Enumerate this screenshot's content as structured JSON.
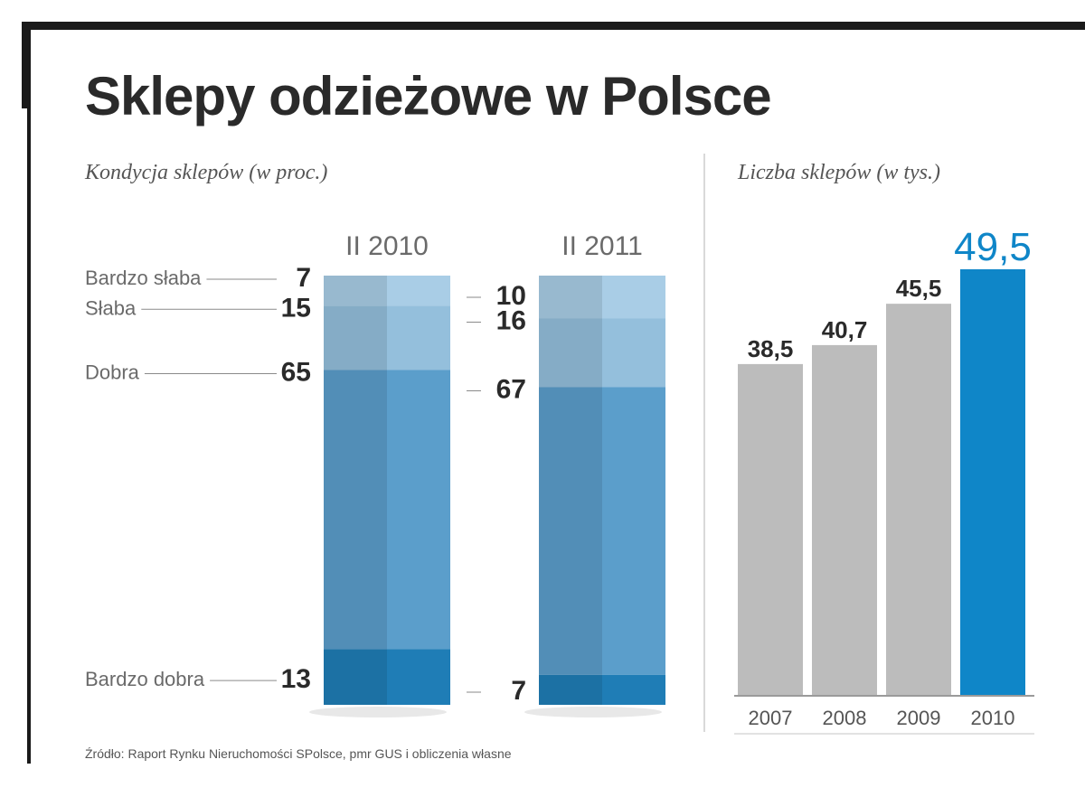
{
  "title": "Sklepy odzieżowe w Polsce",
  "source": "Źródło: Raport Rynku Nieruchomości SPolsce, pmr GUS i obliczenia własne",
  "chart_data": [
    {
      "type": "bar",
      "stacked": true,
      "subtitle": "Kondycja sklepów (w proc.)",
      "categories": [
        "II 2010",
        "II 2011"
      ],
      "series": [
        {
          "name": "Bardzo słaba",
          "values": [
            7,
            10
          ],
          "color": "#a9cde6"
        },
        {
          "name": "Słaba",
          "values": [
            15,
            16
          ],
          "color": "#94bfdc"
        },
        {
          "name": "Dobra",
          "values": [
            65,
            67
          ],
          "color": "#5b9ecb"
        },
        {
          "name": "Bardzo dobra",
          "values": [
            13,
            7
          ],
          "color": "#1f7db6"
        }
      ],
      "ylim": [
        0,
        100
      ]
    },
    {
      "type": "bar",
      "subtitle": "Liczba sklepów (w tys.)",
      "categories": [
        "2007",
        "2008",
        "2009",
        "2010"
      ],
      "values": [
        38.5,
        40.7,
        45.5,
        49.5
      ],
      "value_labels": [
        "38,5",
        "40,7",
        "45,5",
        "49,5"
      ],
      "colors": [
        "#bcbcbc",
        "#bcbcbc",
        "#bcbcbc",
        "#0f86c8"
      ],
      "highlight_color": "#0f86c8",
      "ylim": [
        0,
        50
      ]
    }
  ]
}
